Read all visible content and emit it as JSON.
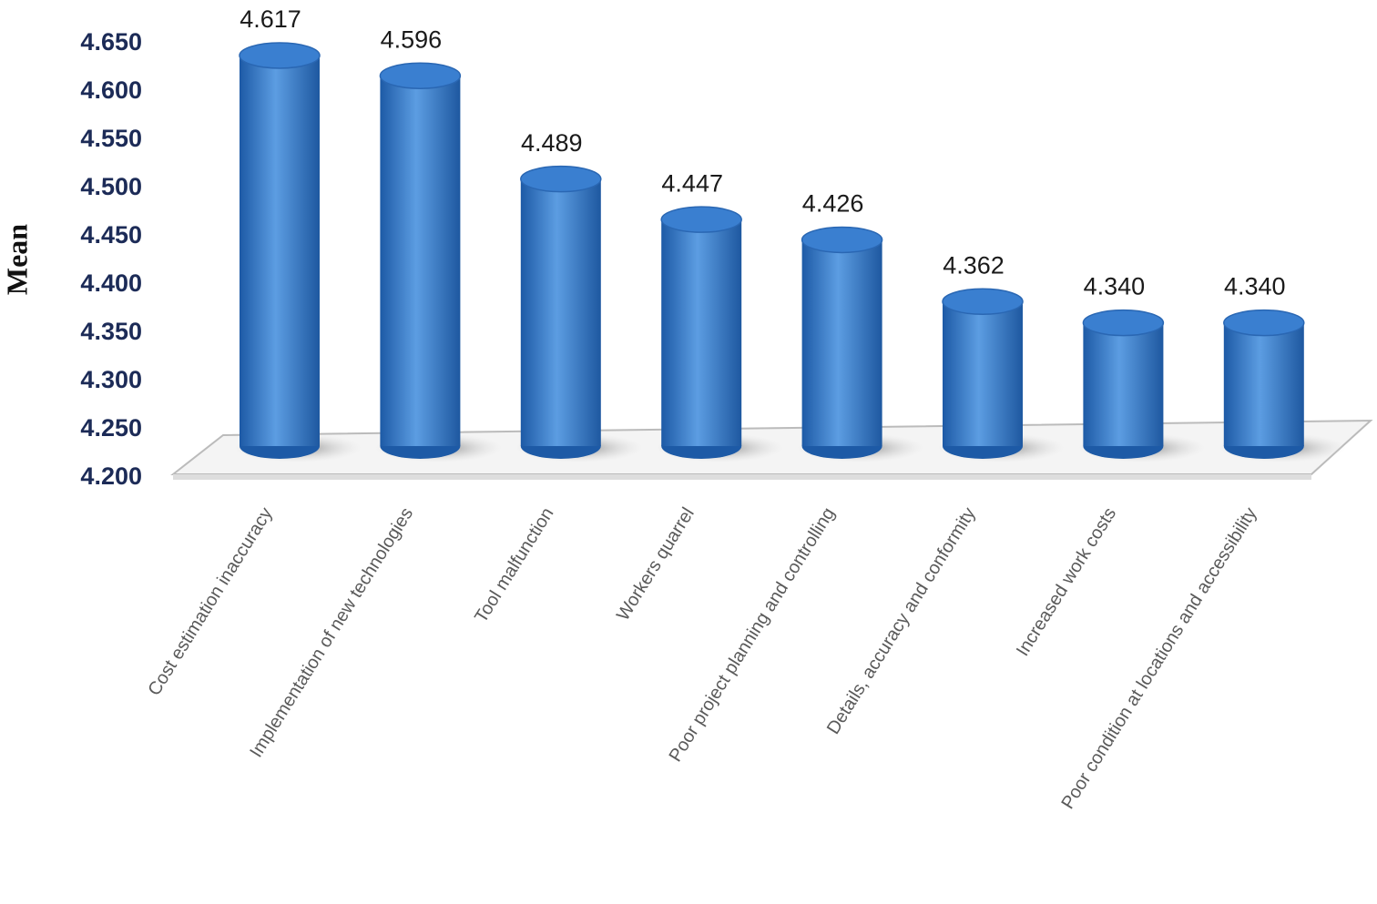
{
  "chart_data": {
    "type": "bar",
    "y_label": "Mean",
    "categories": [
      "Cost estimation inaccuracy",
      "Implementation of new technologies",
      "Tool malfunction",
      "Workers quarrel",
      "Poor project planning and controlling",
      "Details, accuracy and conformity",
      "Increased work costs",
      "Poor condition at locations and accessibility"
    ],
    "values": [
      4.617,
      4.596,
      4.489,
      4.447,
      4.426,
      4.362,
      4.34,
      4.34
    ],
    "value_labels": [
      "4.617",
      "4.596",
      "4.489",
      "4.447",
      "4.426",
      "4.362",
      "4.340",
      "4.340"
    ],
    "color": "#3a7fd0",
    "ylim": [
      4.2,
      4.65
    ],
    "yticks": [
      {
        "value": 4.2,
        "label": "4.200"
      },
      {
        "value": 4.25,
        "label": "4.250"
      },
      {
        "value": 4.3,
        "label": "4.300"
      },
      {
        "value": 4.35,
        "label": "4.350"
      },
      {
        "value": 4.4,
        "label": "4.400"
      },
      {
        "value": 4.45,
        "label": "4.450"
      },
      {
        "value": 4.5,
        "label": "4.500"
      },
      {
        "value": 4.55,
        "label": "4.550"
      },
      {
        "value": 4.6,
        "label": "4.600"
      },
      {
        "value": 4.65,
        "label": "4.650"
      }
    ]
  }
}
